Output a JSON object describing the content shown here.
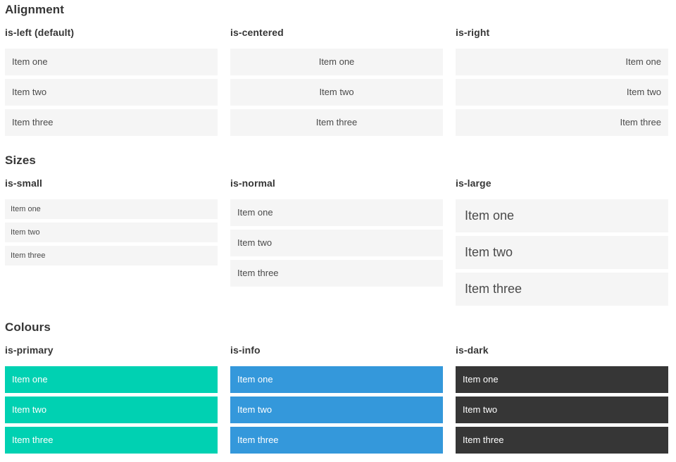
{
  "sections": [
    {
      "title": "Alignment",
      "groups": [
        {
          "label": "is-left (default)",
          "variant": "is-left",
          "items": [
            "Item one",
            "Item two",
            "Item three"
          ]
        },
        {
          "label": "is-centered",
          "variant": "is-centered",
          "items": [
            "Item one",
            "Item two",
            "Item three"
          ]
        },
        {
          "label": "is-right",
          "variant": "is-right",
          "items": [
            "Item one",
            "Item two",
            "Item three"
          ]
        }
      ]
    },
    {
      "title": "Sizes",
      "groups": [
        {
          "label": "is-small",
          "variant": "is-small",
          "items": [
            "Item one",
            "Item two",
            "Item three"
          ]
        },
        {
          "label": "is-normal",
          "variant": "is-normal",
          "items": [
            "Item one",
            "Item two",
            "Item three"
          ]
        },
        {
          "label": "is-large",
          "variant": "is-large",
          "items": [
            "Item one",
            "Item two",
            "Item three"
          ]
        }
      ]
    },
    {
      "title": "Colours",
      "groups": [
        {
          "label": "is-primary",
          "variant": "is-primary",
          "items": [
            "Item one",
            "Item two",
            "Item three"
          ]
        },
        {
          "label": "is-info",
          "variant": "is-info",
          "items": [
            "Item one",
            "Item two",
            "Item three"
          ]
        },
        {
          "label": "is-dark",
          "variant": "is-dark",
          "items": [
            "Item one",
            "Item two",
            "Item three"
          ]
        }
      ]
    }
  ],
  "colors": {
    "primary": "#00d1b2",
    "info": "#3498db",
    "dark": "#363636",
    "item_background": "#f5f5f5",
    "item_text": "#4a4a4a",
    "item_text_on_colour": "#ffffff",
    "heading_text": "#363636"
  }
}
